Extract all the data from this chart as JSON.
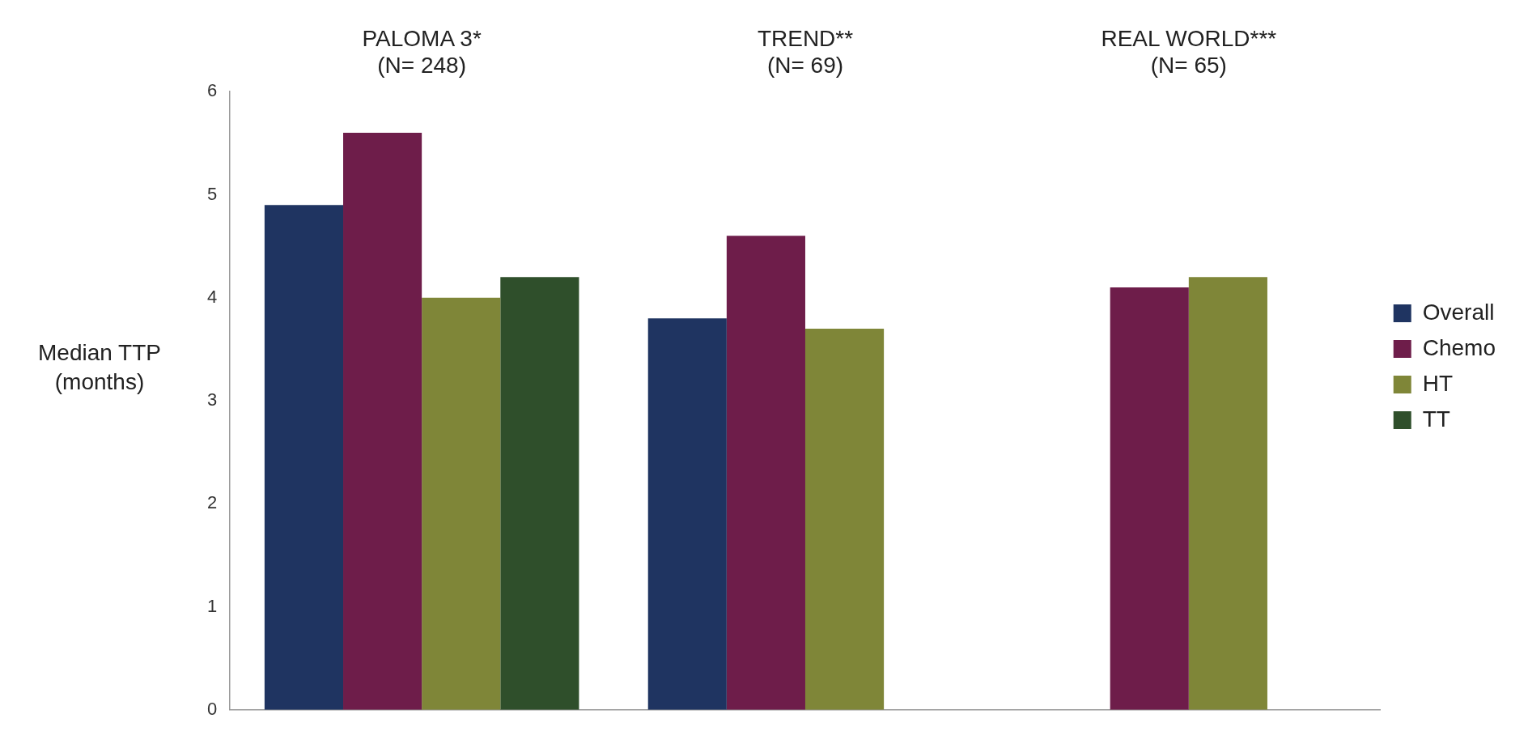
{
  "chart_data": {
    "type": "bar",
    "ylabel": "Median TTP\n(months)",
    "categories": [
      "PALOMA 3*\n(N= 248)",
      "TREND**\n(N= 69)",
      "REAL WORLD***\n(N= 65)"
    ],
    "series": [
      {
        "name": "Overall",
        "color": "#1f3461",
        "values": [
          4.9,
          3.8,
          null
        ]
      },
      {
        "name": "Chemo",
        "color": "#6e1d4a",
        "values": [
          5.6,
          4.6,
          4.1
        ]
      },
      {
        "name": "HT",
        "color": "#7f8638",
        "values": [
          4.0,
          3.7,
          4.2
        ]
      },
      {
        "name": "TT",
        "color": "#2f4f2b",
        "values": [
          4.2,
          null,
          null
        ]
      }
    ],
    "ylim": [
      0,
      6
    ],
    "yticks": [
      0,
      1,
      2,
      3,
      4,
      5,
      6
    ],
    "grid": false,
    "legend": "right"
  }
}
